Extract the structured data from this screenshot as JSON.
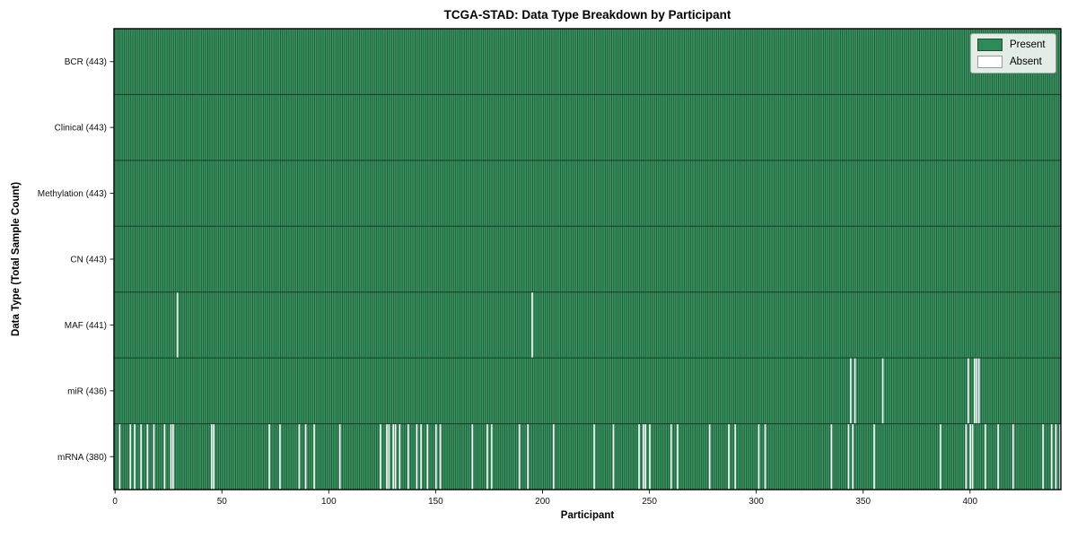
{
  "chart_data": {
    "type": "heatmap",
    "title": "TCGA-STAD: Data Type Breakdown by Participant",
    "xlabel": "Participant",
    "ylabel": "Data Type (Total Sample Count)",
    "n_participants": 443,
    "x_ticks": [
      0,
      50,
      100,
      150,
      200,
      250,
      300,
      350,
      400
    ],
    "legend": [
      {
        "label": "Present",
        "color": "#2e8b57"
      },
      {
        "label": "Absent",
        "color": "#ffffff"
      }
    ],
    "legend_position": "upper right",
    "colors": {
      "present_fill": "#3a9763",
      "present_edge": "#1a4f31",
      "absent": "#ffffff",
      "row_divider": "#143d26",
      "frame": "#000000"
    },
    "rows": [
      {
        "label": "BCR (443)",
        "name": "BCR",
        "total": 443,
        "absent": []
      },
      {
        "label": "Clinical (443)",
        "name": "Clinical",
        "total": 443,
        "absent": []
      },
      {
        "label": "Methylation (443)",
        "name": "Methylation",
        "total": 443,
        "absent": []
      },
      {
        "label": "CN (443)",
        "name": "CN",
        "total": 443,
        "absent": []
      },
      {
        "label": "MAF (441)",
        "name": "MAF",
        "total": 441,
        "absent": [
          29,
          195
        ]
      },
      {
        "label": "miR (436)",
        "name": "miR",
        "total": 436,
        "absent": [
          344,
          346,
          359,
          399,
          402,
          403,
          404
        ]
      },
      {
        "label": "mRNA (380)",
        "name": "mRNA",
        "total": 380,
        "absent": [
          2,
          7,
          9,
          12,
          15,
          18,
          23,
          26,
          27,
          45,
          46,
          72,
          77,
          86,
          89,
          93,
          105,
          124,
          127,
          128,
          130,
          131,
          133,
          137,
          141,
          143,
          146,
          150,
          152,
          167,
          174,
          176,
          189,
          193,
          205,
          224,
          233,
          245,
          247,
          248,
          250,
          260,
          263,
          278,
          287,
          290,
          301,
          304,
          335,
          343,
          345,
          355,
          386,
          398,
          400,
          401,
          407,
          413,
          420,
          434,
          438,
          440,
          442
        ]
      }
    ]
  }
}
